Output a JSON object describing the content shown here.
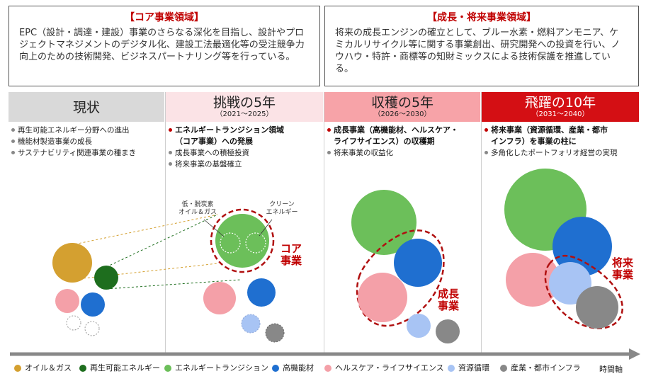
{
  "top": {
    "core": {
      "title": "【コア事業領域】",
      "text": "EPC（設計・調達・建設）事業のさらなる深化を目指し、設計やプロジェクトマネジメントのデジタル化、建設工法最適化等の受注競争力向上のための技術開発、ビジネスパートナリング等を行っている。"
    },
    "growth": {
      "title": "【成長・将来事業領域】",
      "text": "将来の成長エンジンの確立として、ブルー水素・燃料アンモニア、ケミカルリサイクル等に関する事業創出、研究開発への投資を行い、ノウハウ・特許・商標等の知財ミックスによる技術保護を推進している。"
    }
  },
  "phases": [
    {
      "title": "現状",
      "sub": ""
    },
    {
      "title": "挑戦の5年",
      "sub": "（2021～2025）"
    },
    {
      "title": "収穫の5年",
      "sub": "（2026～2030）"
    },
    {
      "title": "飛躍の10年",
      "sub": "（2031～2040）"
    }
  ],
  "columns": [
    {
      "items": [
        "再生可能エネルギー分野への進出",
        "機能材製造事業の成長",
        "サステナビリティ関連事業の種まき"
      ]
    },
    {
      "bold": "エネルギートランジション領域\n（コア事業）への発展",
      "items": [
        "成長事業への積極投資",
        "将来事業の基盤確立"
      ]
    },
    {
      "bold": "成長事業（高機能材、ヘルスケア・\nライフサイエンス）の収穫期",
      "items": [
        "将来事業の収益化"
      ]
    },
    {
      "bold": "将来事業（資源循環、産業・都市\nインフラ）を事業の柱に",
      "items": [
        "多角化したポートフォリオ経営の実現"
      ]
    }
  ],
  "labels": {
    "low_carbon": "低・脱炭素\nオイル＆ガス",
    "clean_energy": "クリーン\nエネルギー",
    "core_callout": "コア\n事業",
    "growth_callout": "成長\n事業",
    "future_callout": "将来\n事業",
    "time_axis": "時間軸"
  },
  "legend": [
    {
      "label": "オイル＆ガス",
      "color": "#d4a030"
    },
    {
      "label": "再生可能エネルギー",
      "color": "#1e6e1e"
    },
    {
      "label": "エネルギートランジション",
      "color": "#6cbf5a"
    },
    {
      "label": "高機能材",
      "color": "#1f6fd0"
    },
    {
      "label": "ヘルスケア・ライフサイエンス",
      "color": "#f4a0a8"
    },
    {
      "label": "資源循環",
      "color": "#a8c4f4"
    },
    {
      "label": "産業・都市インフラ",
      "color": "#888888"
    }
  ],
  "colors": {
    "accent": "#c00000",
    "phase1": "#d9d9d9",
    "phase2": "#fbe3e6",
    "phase3": "#f7a3a8",
    "phase4": "#d40f14"
  }
}
